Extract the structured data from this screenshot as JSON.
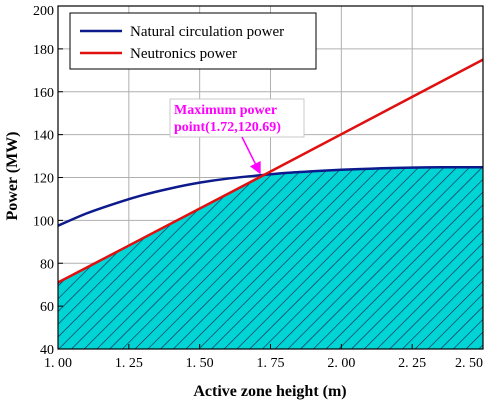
{
  "chart_data": {
    "type": "line",
    "xlabel": "Active zone height (m)",
    "ylabel": "Power (MW)",
    "xlim": [
      1.0,
      2.5
    ],
    "ylim": [
      40,
      200
    ],
    "xticks": [
      1.0,
      1.25,
      1.5,
      1.75,
      2.0,
      2.25,
      2.5
    ],
    "xtick_labels": [
      "1. 00",
      "1. 25",
      "1. 50",
      "1. 75",
      "2. 00",
      "2. 25",
      "2. 50"
    ],
    "yticks": [
      40,
      60,
      80,
      100,
      120,
      140,
      160,
      180,
      200
    ],
    "ytick_labels": [
      "40",
      "60",
      "80",
      "100",
      "120",
      "140",
      "160",
      "180",
      "200"
    ],
    "grid": true,
    "legend_position": "top-left",
    "series": [
      {
        "name": "Natural circulation power",
        "color": "#0d1a8c",
        "x": [
          1.0,
          1.1,
          1.2,
          1.3,
          1.4,
          1.5,
          1.6,
          1.72,
          1.8,
          1.9,
          2.0,
          2.1,
          2.2,
          2.3,
          2.4,
          2.5
        ],
        "y": [
          97.5,
          103.2,
          107.8,
          111.8,
          115.0,
          117.6,
          119.5,
          121.1,
          122.1,
          122.9,
          123.6,
          124.1,
          124.5,
          124.7,
          124.8,
          124.8
        ]
      },
      {
        "name": "Neutronics power",
        "color": "#e01010",
        "x": [
          1.0,
          1.72,
          2.5
        ],
        "y": [
          71.0,
          120.69,
          175.0
        ]
      }
    ],
    "shaded_region": {
      "description_source": "region under the minimum of the two curves",
      "fill": "#00d4d4",
      "hatch_color": "#1a1a4a"
    },
    "annotation": {
      "lines": [
        "Maximum power",
        "point(1.72,120.69)"
      ],
      "point": [
        1.72,
        120.69
      ],
      "color": "#ff00ff"
    }
  }
}
